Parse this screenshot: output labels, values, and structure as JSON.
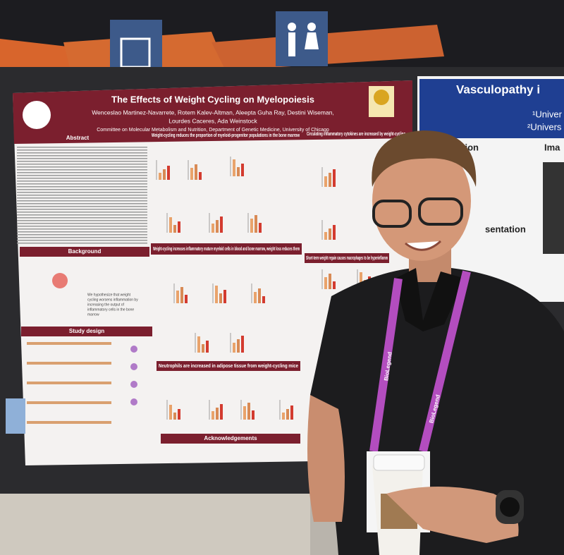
{
  "poster": {
    "title": "The Effects of Weight Cycling on Myelopoiesis",
    "authors": [
      "Wenceslao Martinez-Navarrete, Rotem Kalev-Altman, Aleepta Guha Ray, Destini Wiseman,",
      "Lourdes Caceres, Ada Weinstock"
    ],
    "affiliation": "Committee on Molecular Metabolism and Nutrition, Department of Genetic Medicine, University of Chicago",
    "sections": {
      "abstract": "Abstract",
      "background": "Background",
      "study_design": "Study design",
      "progenitors": "Weight-cycling reduces the proportion of myeloid-progenitor populations in the bone marrow",
      "cytokines": "Circulating inflammatory cytokines are increased by weight-cycling",
      "mature": "Weight-cycling increases inflammatory mature myeloid cells in blood and bone marrow, weight loss reduces them",
      "regain": "Short-term weight regain causes macrophages to be hyperinflamm",
      "neutrophils": "Neutrophils are increased in adipose tissue from weight-cycling mice",
      "acknowledgements": "Acknowledgements"
    },
    "hypothesis": [
      "We hypothesize that weight",
      "cycling worsens inflammation by",
      "increasing the output of",
      "inflammatory cells in the bone",
      "marrow"
    ]
  },
  "right_poster": {
    "title": "Vasculopathy i",
    "affiliations": [
      "¹Univer",
      "²Univers"
    ],
    "headings": [
      "uction",
      "Ima",
      "sentation"
    ]
  },
  "lanyard": {
    "text": "BioLegend"
  }
}
